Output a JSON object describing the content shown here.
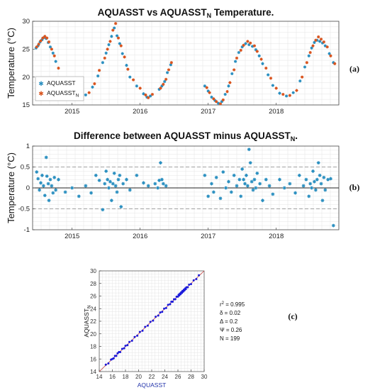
{
  "chart_data": [
    {
      "panel": "a",
      "type": "scatter",
      "title": "AQUASST vs AQUASST",
      "title_sub": "N",
      "title_tail": " Temperature.",
      "ylabel": "Temperature",
      "ylabel_unit": "(°C)",
      "ylim": [
        15,
        30
      ],
      "yticks": [
        15,
        20,
        25,
        30
      ],
      "xlim": [
        2014.42,
        2018.92
      ],
      "xticks": [
        2015,
        2016,
        2017,
        2018
      ],
      "xtick_labels": [
        "2015",
        "2016",
        "2017",
        "2018"
      ],
      "grid": "minor",
      "legend": "bottom-left",
      "series": [
        {
          "name": "AQUASST",
          "color": "#2a8fc0",
          "x": [
            2014.47,
            2014.5,
            2014.53,
            2014.56,
            2014.59,
            2014.62,
            2014.65,
            2014.68,
            2014.72,
            2014.76,
            2014.85,
            2014.95,
            2015.05,
            2015.1,
            2015.2,
            2015.3,
            2015.38,
            2015.45,
            2015.5,
            2015.54,
            2015.58,
            2015.62,
            2015.66,
            2015.7,
            2015.74,
            2015.8,
            2015.85,
            2015.95,
            2016.05,
            2016.1,
            2016.15,
            2016.28,
            2016.32,
            2016.36,
            2016.4,
            2016.45,
            2016.95,
            2017.0,
            2017.05,
            2017.1,
            2017.15,
            2017.2,
            2017.25,
            2017.3,
            2017.35,
            2017.4,
            2017.45,
            2017.5,
            2017.55,
            2017.6,
            2017.65,
            2017.7,
            2017.75,
            2017.8,
            2017.88,
            2017.95,
            2018.05,
            2018.15,
            2018.25,
            2018.35,
            2018.42,
            2018.48,
            2018.52,
            2018.56,
            2018.6,
            2018.64,
            2018.68,
            2018.72,
            2018.78,
            2018.84
          ],
          "y": [
            25.2,
            25.6,
            26.3,
            26.7,
            27.1,
            26.9,
            26.2,
            25.4,
            24.3,
            22.8,
            19.8,
            18.2,
            17.0,
            16.6,
            16.8,
            18.2,
            20.2,
            22.6,
            24.3,
            25.8,
            27.3,
            28.8,
            27.4,
            26.0,
            24.2,
            22.1,
            20.0,
            18.4,
            17.0,
            16.4,
            16.6,
            17.8,
            18.4,
            19.2,
            20.8,
            22.2,
            18.4,
            17.5,
            16.4,
            15.8,
            15.3,
            15.6,
            16.9,
            18.4,
            20.6,
            22.8,
            24.4,
            25.4,
            26.0,
            25.8,
            25.5,
            24.9,
            23.8,
            22.4,
            20.4,
            18.5,
            17.1,
            16.6,
            17.2,
            19.3,
            21.8,
            23.8,
            25.2,
            26.2,
            26.6,
            26.4,
            26.1,
            25.6,
            24.2,
            22.6
          ]
        },
        {
          "name": "AQUASST",
          "name_sub": "N",
          "color": "#d9541e",
          "x": [
            2014.48,
            2014.51,
            2014.54,
            2014.57,
            2014.6,
            2014.63,
            2014.66,
            2014.7,
            2014.74,
            2014.8,
            2014.9,
            2015.0,
            2015.08,
            2015.15,
            2015.25,
            2015.33,
            2015.4,
            2015.48,
            2015.52,
            2015.56,
            2015.6,
            2015.64,
            2015.68,
            2015.72,
            2015.77,
            2015.82,
            2015.9,
            2016.0,
            2016.08,
            2016.12,
            2016.18,
            2016.3,
            2016.34,
            2016.38,
            2016.42,
            2016.46,
            2016.98,
            2017.02,
            2017.08,
            2017.12,
            2017.18,
            2017.22,
            2017.28,
            2017.32,
            2017.38,
            2017.42,
            2017.48,
            2017.52,
            2017.58,
            2017.62,
            2017.68,
            2017.72,
            2017.78,
            2017.85,
            2017.92,
            2018.0,
            2018.1,
            2018.2,
            2018.3,
            2018.38,
            2018.45,
            2018.5,
            2018.54,
            2018.58,
            2018.62,
            2018.66,
            2018.7,
            2018.75,
            2018.8,
            2018.86
          ],
          "y": [
            25.4,
            25.9,
            26.5,
            27.0,
            27.3,
            27.0,
            26.3,
            25.0,
            23.8,
            21.6,
            19.0,
            17.8,
            16.9,
            16.5,
            17.2,
            18.8,
            21.2,
            23.4,
            25.0,
            26.4,
            28.4,
            29.6,
            27.0,
            25.6,
            23.6,
            21.4,
            19.5,
            18.0,
            16.8,
            16.3,
            16.9,
            18.0,
            18.7,
            19.6,
            21.3,
            22.6,
            18.1,
            17.2,
            16.1,
            15.6,
            15.2,
            15.9,
            17.4,
            19.0,
            21.3,
            23.4,
            24.8,
            25.7,
            26.4,
            26.1,
            25.6,
            24.6,
            23.2,
            21.6,
            19.8,
            18.0,
            16.9,
            16.7,
            17.6,
            20.0,
            22.6,
            24.4,
            25.6,
            26.6,
            27.2,
            26.8,
            26.3,
            25.4,
            23.8,
            22.4
          ]
        }
      ]
    },
    {
      "panel": "b",
      "type": "scatter",
      "title": "Difference between AQUASST minus AQUASST",
      "title_sub": "N",
      "title_tail": ".",
      "ylabel": "Temperature",
      "ylabel_unit": "(°C)",
      "ylim": [
        -1,
        1
      ],
      "yticks": [
        -1,
        -0.5,
        0,
        0.5,
        1
      ],
      "ytick_labels": [
        "-1",
        "-0.5",
        "0",
        "0.5",
        "1"
      ],
      "xlim": [
        2014.42,
        2018.92
      ],
      "xticks": [
        2015,
        2016,
        2017,
        2018
      ],
      "xtick_labels": [
        "2015",
        "2016",
        "2017",
        "2018"
      ],
      "reference_lines": [
        0.5,
        -0.5
      ],
      "zero_line": 0,
      "grid": "minor",
      "series": [
        {
          "color": "#2a8fc0",
          "x": [
            2014.48,
            2014.5,
            2014.52,
            2014.54,
            2014.56,
            2014.58,
            2014.6,
            2014.62,
            2014.63,
            2014.65,
            2014.66,
            2014.68,
            2014.7,
            2014.72,
            2014.74,
            2014.76,
            2014.8,
            2014.9,
            2015.0,
            2015.1,
            2015.2,
            2015.28,
            2015.35,
            2015.4,
            2015.45,
            2015.48,
            2015.5,
            2015.52,
            2015.54,
            2015.56,
            2015.58,
            2015.6,
            2015.62,
            2015.64,
            2015.66,
            2015.68,
            2015.7,
            2015.72,
            2015.75,
            2015.8,
            2015.85,
            2015.95,
            2016.05,
            2016.12,
            2016.22,
            2016.26,
            2016.28,
            2016.3,
            2016.32,
            2016.34,
            2016.38,
            2016.95,
            2017.0,
            2017.05,
            2017.08,
            2017.12,
            2017.18,
            2017.22,
            2017.26,
            2017.3,
            2017.34,
            2017.38,
            2017.42,
            2017.46,
            2017.48,
            2017.5,
            2017.52,
            2017.54,
            2017.56,
            2017.58,
            2017.6,
            2017.62,
            2017.64,
            2017.66,
            2017.68,
            2017.7,
            2017.72,
            2017.76,
            2017.8,
            2017.85,
            2017.9,
            2017.95,
            2018.05,
            2018.12,
            2018.2,
            2018.28,
            2018.34,
            2018.4,
            2018.44,
            2018.48,
            2018.5,
            2018.52,
            2018.54,
            2018.56,
            2018.58,
            2018.6,
            2018.62,
            2018.64,
            2018.66,
            2018.68,
            2018.7,
            2018.72,
            2018.76,
            2018.8,
            2018.84
          ],
          "y": [
            0.38,
            0.22,
            -0.05,
            0.12,
            0.3,
            0.05,
            -0.18,
            0.73,
            0.28,
            0.1,
            -0.3,
            0.2,
            0.05,
            -0.12,
            0.25,
            -0.05,
            0.2,
            -0.1,
            0.0,
            -0.2,
            0.05,
            -0.12,
            0.3,
            0.18,
            -0.52,
            0.1,
            0.4,
            0.2,
            0.0,
            0.15,
            -0.3,
            0.1,
            0.35,
            0.05,
            -0.1,
            0.2,
            0.3,
            -0.45,
            0.1,
            0.2,
            -0.05,
            0.3,
            0.12,
            0.05,
            0.1,
            0.0,
            0.18,
            0.6,
            0.2,
            0.1,
            0.05,
            0.3,
            -0.2,
            0.1,
            -0.1,
            0.25,
            -0.25,
            0.38,
            0.0,
            0.15,
            -0.1,
            0.3,
            0.05,
            0.2,
            -0.2,
            0.45,
            0.2,
            0.1,
            0.3,
            0.05,
            0.92,
            0.6,
            0.15,
            -0.05,
            0.2,
            0.0,
            0.35,
            0.1,
            -0.3,
            0.2,
            0.05,
            -0.15,
            0.2,
            0.0,
            0.1,
            -0.12,
            0.3,
            0.05,
            0.2,
            -0.2,
            0.1,
            0.0,
            0.4,
            0.15,
            -0.05,
            0.2,
            0.6,
            0.3,
            0.1,
            -0.3,
            0.25,
            -0.05,
            0.2,
            0.22,
            -0.9
          ]
        }
      ]
    },
    {
      "panel": "c",
      "type": "scatter",
      "xlabel": "AQUASST",
      "ylabel": "AQUASST",
      "ylabel_sub": "N",
      "xlim": [
        14,
        30
      ],
      "ylim": [
        14,
        30
      ],
      "xticks": [
        14,
        16,
        18,
        20,
        22,
        24,
        26,
        28,
        30
      ],
      "yticks": [
        14,
        16,
        18,
        20,
        22,
        24,
        26,
        28,
        30
      ],
      "reference_line": "1:1",
      "grid": "minor",
      "series": [
        {
          "color": "#1a1adb",
          "x": [
            15.0,
            15.4,
            15.8,
            16.0,
            16.2,
            16.4,
            16.6,
            16.8,
            17.0,
            17.2,
            17.5,
            17.8,
            18.0,
            18.3,
            18.6,
            19.0,
            19.4,
            19.8,
            20.2,
            20.6,
            21.0,
            21.4,
            21.8,
            22.2,
            22.6,
            23.0,
            23.3,
            23.6,
            23.9,
            24.2,
            24.5,
            24.8,
            25.0,
            25.2,
            25.4,
            25.6,
            25.8,
            26.0,
            26.1,
            26.2,
            26.3,
            26.4,
            26.5,
            26.6,
            26.7,
            26.8,
            26.9,
            27.0,
            27.1,
            27.2,
            27.3,
            27.5,
            27.7,
            28.0,
            28.4,
            28.8,
            29.2
          ],
          "y": [
            15.1,
            15.3,
            15.9,
            16.0,
            16.1,
            16.5,
            16.5,
            16.9,
            17.1,
            17.1,
            17.6,
            17.7,
            18.1,
            18.2,
            18.7,
            18.9,
            19.5,
            19.7,
            20.3,
            20.5,
            21.1,
            21.3,
            21.9,
            22.1,
            22.7,
            22.9,
            23.4,
            23.5,
            24.0,
            24.1,
            24.6,
            24.7,
            25.1,
            25.1,
            25.5,
            25.5,
            25.9,
            25.9,
            26.2,
            26.1,
            26.4,
            26.3,
            26.6,
            26.5,
            26.8,
            26.7,
            27.0,
            26.9,
            27.2,
            27.1,
            27.4,
            27.4,
            27.8,
            27.9,
            28.5,
            28.7,
            29.3
          ]
        }
      ]
    },
    {
      "panel": "c-stats",
      "type": "table",
      "rows": [
        {
          "label": "r",
          "sup": "2",
          "text": " = 0.995"
        },
        {
          "label": "δ = 0.02"
        },
        {
          "label": "Δ = 0.2"
        },
        {
          "label": "Ψ = 0.26"
        },
        {
          "label": "N = 199"
        }
      ]
    }
  ],
  "panel_labels": [
    "(a)",
    "(b)",
    "(c)"
  ]
}
